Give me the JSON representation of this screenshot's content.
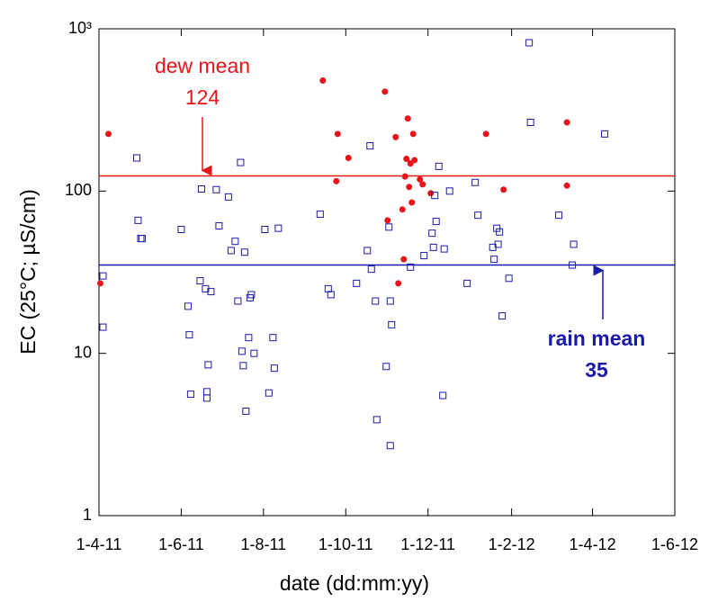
{
  "chart_data": {
    "type": "scatter",
    "x_label": "date (dd:mm:yy)",
    "y_label": "EC (25°C; µS/cm)",
    "log_y": true,
    "xlim": [
      "2011-04-01",
      "2012-06-01"
    ],
    "xticks": [
      {
        "value": "2011-04-01",
        "label": "1-4-11"
      },
      {
        "value": "2011-06-01",
        "label": "1-6-11"
      },
      {
        "value": "2011-08-01",
        "label": "1-8-11"
      },
      {
        "value": "2011-10-01",
        "label": "1-10-11"
      },
      {
        "value": "2011-12-01",
        "label": "1-12-11"
      },
      {
        "value": "2012-02-01",
        "label": "1-2-12"
      },
      {
        "value": "2012-04-01",
        "label": "1-4-12"
      },
      {
        "value": "2012-06-01",
        "label": "1-6-12"
      }
    ],
    "ylim": [
      1,
      1000
    ],
    "yticks": [
      1,
      10,
      100,
      {
        "value": 1000,
        "label": "10³"
      }
    ],
    "series": [
      {
        "color": "#e8141a",
        "marker": "circle",
        "x": [
          "2011-04-02",
          "2011-04-08",
          "2011-09-14",
          "2011-09-25",
          "2011-09-24",
          "2011-10-03",
          "2011-10-30",
          "2011-11-01",
          "2011-11-07",
          "2011-11-12",
          "2011-11-09",
          "2011-11-13",
          "2011-11-14",
          "2011-11-15",
          "2011-11-16",
          "2011-11-17",
          "2011-11-18",
          "2011-11-19",
          "2011-11-20",
          "2011-11-21",
          "2011-11-25",
          "2011-11-27",
          "2011-12-03",
          "2012-01-13",
          "2012-01-26",
          "2012-03-13",
          "2012-03-13"
        ],
        "values": [
          27,
          225,
          480,
          225,
          115,
          160,
          410,
          66,
          215,
          77,
          27,
          38,
          123,
          158,
          280,
          106,
          148,
          85,
          225,
          155,
          118,
          110,
          97,
          225,
          102,
          265,
          108
        ]
      },
      {
        "color": "#1a1aa8",
        "marker": "square",
        "x": [
          "2011-04-04",
          "2011-04-04",
          "2011-04-29",
          "2011-04-30",
          "2011-05-02",
          "2011-05-03",
          "2011-06-01",
          "2011-06-06",
          "2011-06-07",
          "2011-06-08",
          "2011-06-15",
          "2011-06-16",
          "2011-06-19",
          "2011-06-23",
          "2011-06-21",
          "2011-06-20",
          "2011-06-20",
          "2011-06-27",
          "2011-06-29",
          "2011-07-06",
          "2011-07-08",
          "2011-07-11",
          "2011-07-13",
          "2011-07-15",
          "2011-07-16",
          "2011-07-17",
          "2011-07-18",
          "2011-07-19",
          "2011-07-21",
          "2011-07-22",
          "2011-07-23",
          "2011-07-25",
          "2011-08-02",
          "2011-08-05",
          "2011-08-08",
          "2011-08-09",
          "2011-08-12",
          "2011-09-12",
          "2011-09-18",
          "2011-09-20",
          "2011-10-09",
          "2011-10-17",
          "2011-10-20",
          "2011-10-19",
          "2011-10-23",
          "2011-10-24",
          "2011-10-31",
          "2011-11-02",
          "2011-11-03",
          "2011-11-03",
          "2011-11-04",
          "2011-11-18",
          "2011-11-28",
          "2011-12-04",
          "2011-12-06",
          "2011-12-07",
          "2011-12-05",
          "2011-12-09",
          "2011-12-12",
          "2011-12-13",
          "2011-12-17",
          "2011-12-30",
          "2012-01-05",
          "2012-01-07",
          "2012-01-18",
          "2012-01-19",
          "2012-01-21",
          "2012-01-22",
          "2012-01-23",
          "2012-01-25",
          "2012-01-30",
          "2012-02-14",
          "2012-02-15",
          "2012-03-07",
          "2012-03-17",
          "2012-03-18",
          "2012-04-10"
        ],
        "values": [
          30,
          14.5,
          160,
          66,
          51,
          51,
          58,
          19.5,
          13,
          5.6,
          28,
          103,
          25,
          24,
          8.5,
          5.8,
          5.3,
          102,
          61,
          92,
          43,
          49,
          21,
          150,
          10.3,
          8.4,
          42,
          4.4,
          12.5,
          22,
          23,
          10,
          58,
          5.7,
          12.5,
          8.1,
          59,
          72,
          25,
          23,
          27,
          43,
          33,
          190,
          21,
          3.9,
          8.3,
          60,
          2.7,
          21,
          15,
          34,
          40,
          55,
          94,
          65,
          45,
          142,
          5.5,
          44,
          100,
          27,
          113,
          71,
          45,
          38,
          59,
          47,
          56,
          17,
          29,
          820,
          265,
          71,
          35,
          47,
          225
        ]
      }
    ],
    "reference_lines": [
      {
        "label": "dew mean",
        "value": 124,
        "color": "#e8141a",
        "bold": false
      },
      {
        "label": "rain mean",
        "value": 35,
        "color": "#1a1aa8",
        "bold": true
      }
    ]
  }
}
